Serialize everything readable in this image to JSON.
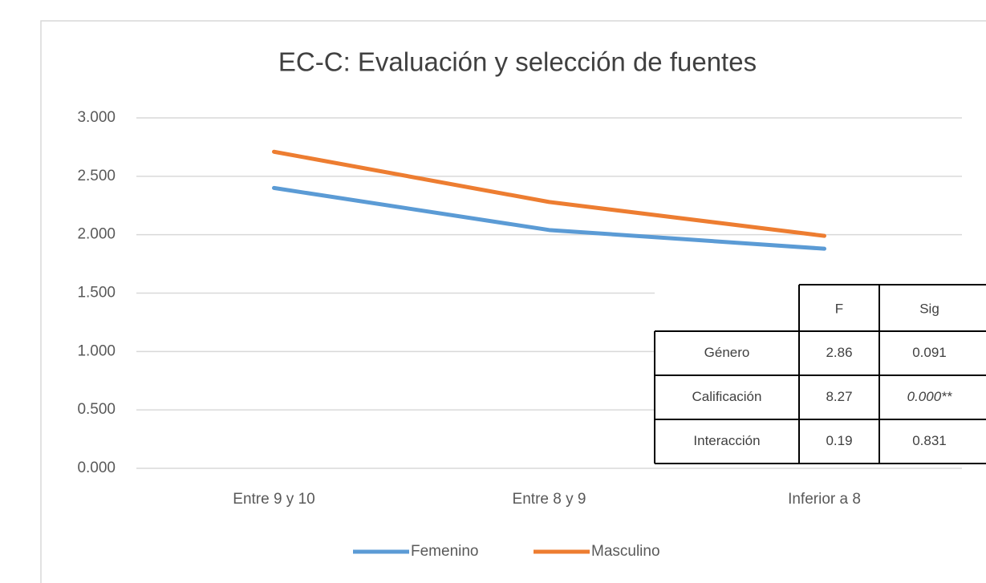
{
  "chart_data": {
    "type": "line",
    "title": "EC-C: Evaluación y selección de fuentes",
    "categories": [
      "Entre 9 y 10",
      "Entre 8 y 9",
      "Inferior a 8"
    ],
    "series": [
      {
        "name": "Femenino",
        "color": "#5b9bd5",
        "values": [
          2.4,
          2.04,
          1.88
        ]
      },
      {
        "name": "Masculino",
        "color": "#ed7d31",
        "values": [
          2.71,
          2.28,
          1.99
        ]
      }
    ],
    "ylim": [
      0,
      3
    ],
    "yticks": [
      {
        "value": 0,
        "label": "0.000"
      },
      {
        "value": 0.5,
        "label": "0.500"
      },
      {
        "value": 1,
        "label": "1.000"
      },
      {
        "value": 1.5,
        "label": "1.500"
      },
      {
        "value": 2,
        "label": "2.000"
      },
      {
        "value": 2.5,
        "label": "2.500"
      },
      {
        "value": 3,
        "label": "3.000"
      }
    ],
    "grid": true,
    "legend": "bottom"
  },
  "table": {
    "header": [
      "F",
      "Sig"
    ],
    "rows": [
      [
        "Género",
        "2.86",
        "0.091"
      ],
      [
        "Calificación",
        "8.27",
        "0.000**"
      ],
      [
        "Interacción",
        "0.19",
        "0.831"
      ]
    ]
  }
}
